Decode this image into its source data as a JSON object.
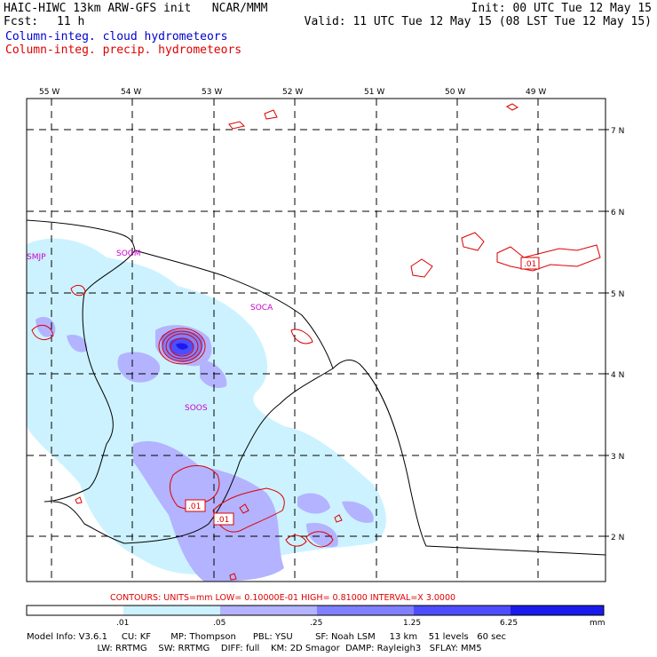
{
  "header": {
    "title_left": "HAIC-HIWC 13km ARW-GFS init   NCAR/MMM",
    "init": "Init: 00 UTC Tue 12 May 15",
    "fcst_label": "Fcst:",
    "fcst_value": "11 h",
    "valid": "Valid: 11 UTC Tue 12 May 15 (08 LST Tue 12 May 15)",
    "field_cloud": "Column-integ. cloud hydrometeors",
    "field_precip": "Column-integ. precip. hydrometeors",
    "cloud_color": "#0000cc",
    "precip_color": "#dd0000"
  },
  "map": {
    "lon_labels": [
      "55 W",
      "54 W",
      "53 W",
      "52 W",
      "51 W",
      "50 W",
      "49 W"
    ],
    "lat_labels": [
      "7 N",
      "6 N",
      "5 N",
      "4 N",
      "3 N",
      "2 N"
    ],
    "stations": [
      "SMJP",
      "SOGM",
      "SOCA",
      "SOOS"
    ],
    "contour_labels": [
      ".01",
      ".01",
      ".01"
    ]
  },
  "legend": {
    "contours_line": "CONTOURS:  UNITS=mm  LOW= 0.10000E-01  HIGH= 0.81000    INTERVAL=X  3.0000",
    "ticks": [
      ".01",
      ".05",
      ".25",
      "1.25",
      "6.25"
    ],
    "units": "mm",
    "colors": [
      "#ffffff",
      "#ccf2ff",
      "#b3b3ff",
      "#8080ff",
      "#4d4dff",
      "#1a1aee"
    ]
  },
  "model_info": {
    "line1": "Model Info: V3.6.1     CU: KF       MP: Thompson      PBL: YSU        SF: Noah LSM     13 km    51 levels   60 sec",
    "line2": "                         LW: RRTMG    SW: RRTMG    DIFF: full    KM: 2D Smagor  DAMP: Rayleigh3   SFLAY: MM5"
  }
}
